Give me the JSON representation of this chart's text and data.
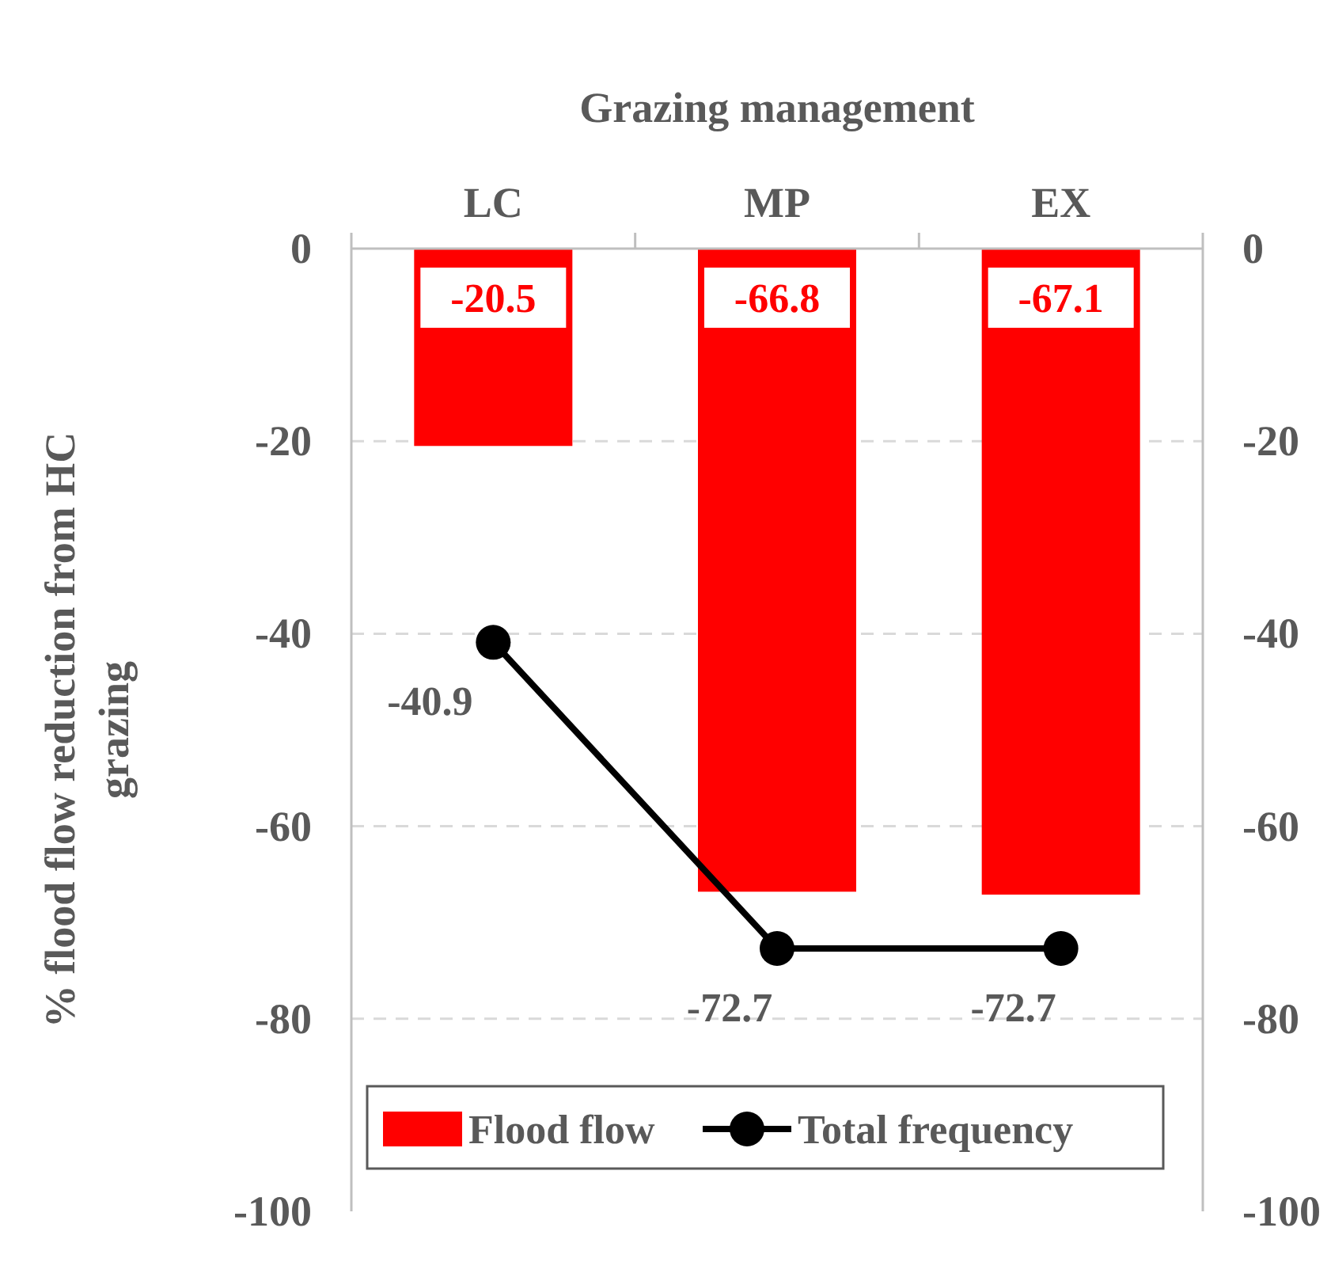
{
  "chart_data": {
    "type": "bar",
    "xlabel": "Grazing management",
    "ylabel": "% flood flow reduction from HC grazing",
    "categories": [
      "LC",
      "MP",
      "EX"
    ],
    "series": [
      {
        "name": "Flood flow",
        "color": "#ff0000",
        "values": [
          -20.5,
          -66.8,
          -67.1
        ]
      },
      {
        "name": "Total frequency",
        "type": "line",
        "color": "#000000",
        "marker": "circle",
        "values": [
          -40.9,
          -72.7,
          -72.7
        ]
      }
    ],
    "ylim": [
      -100,
      0
    ],
    "yticks": [
      -100,
      -80,
      -60,
      -40,
      -20,
      0
    ],
    "y2lim": [
      -100,
      0
    ],
    "y2ticks": [
      -100,
      -80,
      -60,
      -40,
      -20,
      0
    ],
    "grid": "y",
    "legend": "bottom",
    "data_labels": true
  }
}
